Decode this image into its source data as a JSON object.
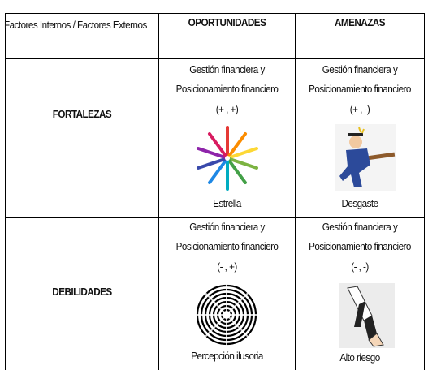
{
  "table": {
    "header": [
      "Factores Internos / Factores Externos",
      "OPORTUNIDADES",
      "AMENAZAS"
    ],
    "rows": [
      {
        "label": "FORTALEZAS",
        "cells": [
          {
            "lines": [
              "Gestión financiera y",
              "Posicionamiento financiero",
              "(+ , +)"
            ],
            "caption": "Estrella"
          },
          {
            "lines": [
              "Gestión financiera y",
              "Posicionamiento financiero",
              "(+ , -)"
            ],
            "caption": "Desgaste"
          }
        ]
      },
      {
        "label": "DEBILIDADES",
        "cells": [
          {
            "lines": [
              "Gestión financiera y",
              "Posicionamiento financiero",
              "(- , +)"
            ],
            "caption": "Percepción ilusoria"
          },
          {
            "lines": [
              "Gestión financiera y",
              "Posicionamiento financiero",
              "(- , -)"
            ],
            "caption": "Alto riesgo"
          }
        ]
      }
    ]
  }
}
